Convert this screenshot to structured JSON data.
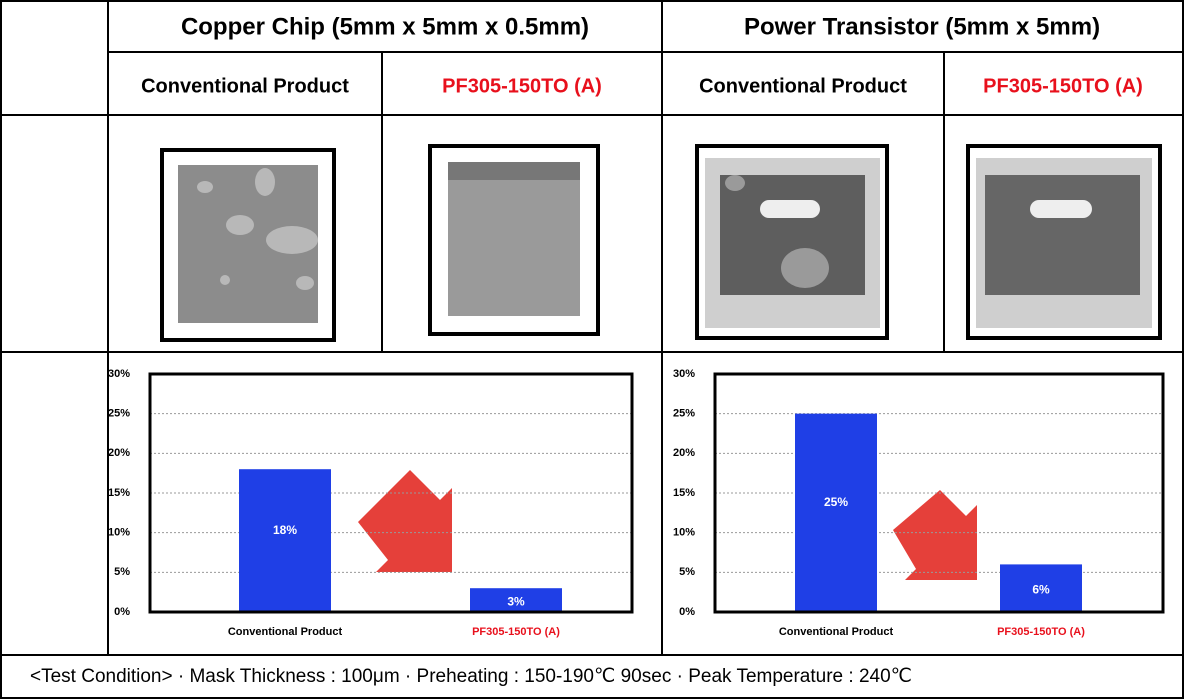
{
  "table": {
    "headers": [
      "Copper Chip (5mm x 5mm x 0.5mm)",
      "Power Transistor (5mm x 5mm)"
    ],
    "subheaders": [
      "Conventional Product",
      "PF305-150TO (A)",
      "Conventional Product",
      "PF305-150TO (A)"
    ]
  },
  "chart_data": [
    {
      "type": "bar",
      "categories": [
        "Conventional Product",
        "PF305-150TO (A)"
      ],
      "values": [
        18,
        3
      ],
      "value_labels": [
        "18%",
        "3%"
      ],
      "color": "#1f3fe6",
      "ylim": [
        0,
        30
      ],
      "yticks": [
        {
          "value": 0,
          "label": "0%"
        },
        {
          "value": 5,
          "label": "5%"
        },
        {
          "value": 10,
          "label": "10%"
        },
        {
          "value": 15,
          "label": "15%"
        },
        {
          "value": 20,
          "label": "20%"
        },
        {
          "value": 25,
          "label": "25%"
        },
        {
          "value": 30,
          "label": "30%"
        }
      ],
      "grid": true
    },
    {
      "type": "bar",
      "categories": [
        "Conventional Product",
        "PF305-150TO (A)"
      ],
      "values": [
        25,
        6
      ],
      "value_labels": [
        "25%",
        "6%"
      ],
      "color": "#1f3fe6",
      "ylim": [
        0,
        30
      ],
      "yticks": [
        {
          "value": 0,
          "label": "0%"
        },
        {
          "value": 5,
          "label": "5%"
        },
        {
          "value": 10,
          "label": "10%"
        },
        {
          "value": 15,
          "label": "15%"
        },
        {
          "value": 20,
          "label": "20%"
        },
        {
          "value": 25,
          "label": "25%"
        },
        {
          "value": 30,
          "label": "30%"
        }
      ],
      "grid": true
    }
  ],
  "footer": "<Test Condition> · Mask Thickness : 100μm · Preheating : 150-190℃ 90sec   · Peak Temperature : 240℃"
}
